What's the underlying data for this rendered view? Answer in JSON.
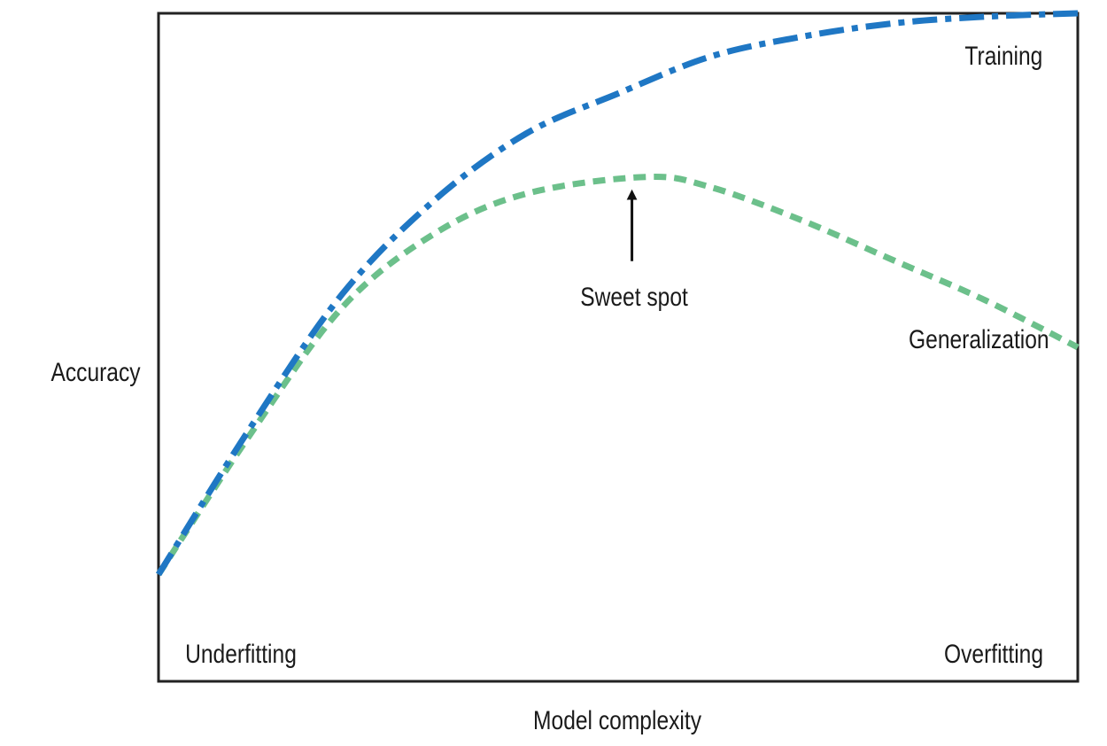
{
  "chart_data": {
    "type": "line",
    "xlabel": "Model complexity",
    "ylabel": "Accuracy",
    "series": [
      {
        "name": "Training",
        "style": "dash-dot",
        "color": "#1f77c4",
        "points": [
          [
            0.0,
            0.16
          ],
          [
            0.1,
            0.38
          ],
          [
            0.2,
            0.58
          ],
          [
            0.3,
            0.72
          ],
          [
            0.4,
            0.82
          ],
          [
            0.5,
            0.88
          ],
          [
            0.6,
            0.935
          ],
          [
            0.7,
            0.965
          ],
          [
            0.8,
            0.985
          ],
          [
            0.9,
            0.995
          ],
          [
            1.0,
            1.0
          ]
        ]
      },
      {
        "name": "Generalization",
        "style": "dashed",
        "color": "#6cc08b",
        "points": [
          [
            0.0,
            0.16
          ],
          [
            0.1,
            0.37
          ],
          [
            0.2,
            0.56
          ],
          [
            0.3,
            0.67
          ],
          [
            0.4,
            0.73
          ],
          [
            0.53,
            0.755
          ],
          [
            0.6,
            0.74
          ],
          [
            0.7,
            0.69
          ],
          [
            0.8,
            0.63
          ],
          [
            0.9,
            0.57
          ],
          [
            1.0,
            0.5
          ]
        ]
      }
    ],
    "annotations": {
      "sweet_spot": "Sweet spot",
      "underfitting": "Underfitting",
      "overfitting": "Overfitting"
    },
    "grid": false,
    "legend": "inline-labels"
  }
}
